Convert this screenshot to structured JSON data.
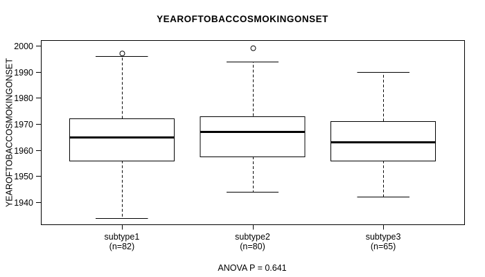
{
  "chart_data": {
    "type": "boxplot",
    "title": "YEAROFTOBACCOSMOKINGONSET",
    "ylabel": "YEAROFTOBACCOSMOKINGONSET",
    "xlabel": "",
    "annotation": "ANOVA P = 0.641",
    "anova_p": 0.641,
    "ylim": [
      1931.5,
      2002.1
    ],
    "yticks": [
      1940,
      1950,
      1960,
      1970,
      1980,
      1990,
      2000
    ],
    "grid": false,
    "legend": "none",
    "box_color": "#000000",
    "box_fill": "#ffffff",
    "groups": [
      {
        "label": "subtype1",
        "n": 82,
        "n_label": "(n=82)",
        "whisker_low": 1934,
        "q1": 1956,
        "median": 1965,
        "q3": 1972,
        "whisker_high": 1996,
        "outliers": [
          1997
        ]
      },
      {
        "label": "subtype2",
        "n": 80,
        "n_label": "(n=80)",
        "whisker_low": 1944,
        "q1": 1957.5,
        "median": 1967,
        "q3": 1973,
        "whisker_high": 1994,
        "outliers": [
          1999
        ]
      },
      {
        "label": "subtype3",
        "n": 65,
        "n_label": "(n=65)",
        "whisker_low": 1942,
        "q1": 1956,
        "median": 1963,
        "q3": 1971,
        "whisker_high": 1990,
        "outliers": []
      }
    ]
  }
}
